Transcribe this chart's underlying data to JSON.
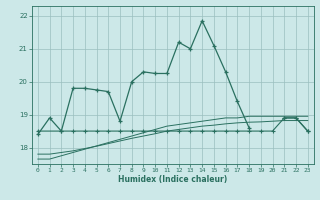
{
  "xlabel": "Humidex (Indice chaleur)",
  "background_color": "#cce8e8",
  "grid_color": "#9bbfbf",
  "line_color": "#2a7060",
  "xlim": [
    -0.5,
    23.5
  ],
  "ylim": [
    17.5,
    22.3
  ],
  "yticks": [
    18,
    19,
    20,
    21,
    22
  ],
  "xticks": [
    0,
    1,
    2,
    3,
    4,
    5,
    6,
    7,
    8,
    9,
    10,
    11,
    12,
    13,
    14,
    15,
    16,
    17,
    18,
    19,
    20,
    21,
    22,
    23
  ],
  "line1_x": [
    0,
    1,
    2,
    3,
    4,
    5,
    6,
    7,
    8,
    9,
    10,
    11,
    12,
    13,
    14,
    15,
    16,
    17,
    18,
    19,
    20,
    21,
    22,
    23
  ],
  "line1_y": [
    18.4,
    18.9,
    18.5,
    19.8,
    19.8,
    19.75,
    19.7,
    18.8,
    20.0,
    20.3,
    20.25,
    20.25,
    21.2,
    21.0,
    21.85,
    21.1,
    20.3,
    19.4,
    18.6,
    null,
    null,
    18.9,
    18.9,
    18.5
  ],
  "line2_x": [
    0,
    2,
    3,
    4,
    5,
    6,
    7,
    8,
    9,
    10,
    11,
    12,
    13,
    14,
    15,
    16,
    17,
    18,
    19,
    20,
    21,
    22,
    23
  ],
  "line2_y": [
    18.5,
    18.5,
    18.5,
    18.5,
    18.5,
    18.5,
    18.5,
    18.5,
    18.5,
    18.5,
    18.5,
    18.5,
    18.5,
    18.5,
    18.5,
    18.5,
    18.5,
    18.5,
    18.5,
    18.5,
    18.9,
    18.9,
    18.5
  ],
  "line3_x": [
    0,
    1,
    2,
    3,
    4,
    5,
    6,
    7,
    8,
    9,
    10,
    11,
    12,
    13,
    14,
    15,
    16,
    17,
    18,
    19,
    20,
    21,
    22,
    23
  ],
  "line3_y": [
    17.65,
    17.65,
    17.75,
    17.85,
    17.95,
    18.05,
    18.15,
    18.25,
    18.35,
    18.45,
    18.55,
    18.65,
    18.7,
    18.75,
    18.8,
    18.85,
    18.9,
    18.9,
    18.95,
    18.95,
    18.95,
    18.95,
    18.95,
    18.95
  ],
  "line4_x": [
    0,
    1,
    2,
    3,
    4,
    5,
    6,
    7,
    8,
    9,
    10,
    11,
    12,
    13,
    14,
    15,
    16,
    17,
    18,
    19,
    20,
    21,
    22,
    23
  ],
  "line4_y": [
    17.8,
    17.8,
    17.85,
    17.9,
    17.97,
    18.04,
    18.12,
    18.2,
    18.28,
    18.35,
    18.42,
    18.5,
    18.55,
    18.6,
    18.65,
    18.68,
    18.72,
    18.75,
    18.77,
    18.78,
    18.8,
    18.82,
    18.82,
    18.82
  ]
}
